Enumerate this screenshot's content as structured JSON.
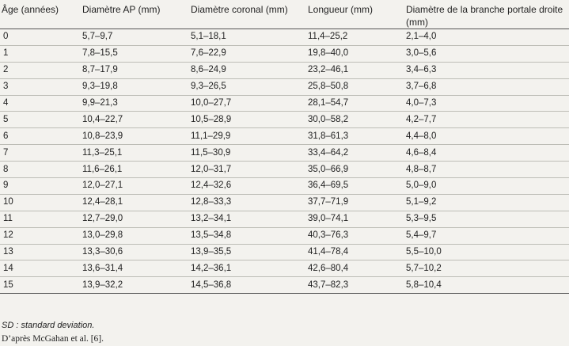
{
  "table": {
    "headers": [
      "Âge (années)",
      "Diamètre AP (mm)",
      "Diamètre coronal (mm)",
      "Longueur (mm)",
      "Diamètre de la branche portale droite (mm)"
    ],
    "rows": [
      [
        "0",
        "5,7–9,7",
        "5,1–18,1",
        "11,4–25,2",
        "2,1–4,0"
      ],
      [
        "1",
        "7,8–15,5",
        "7,6–22,9",
        "19,8–40,0",
        "3,0–5,6"
      ],
      [
        "2",
        "8,7–17,9",
        "8,6–24,9",
        "23,2–46,1",
        "3,4–6,3"
      ],
      [
        "3",
        "9,3–19,8",
        "9,3–26,5",
        "25,8–50,8",
        "3,7–6,8"
      ],
      [
        "4",
        "9,9–21,3",
        "10,0–27,7",
        "28,1–54,7",
        "4,0–7,3"
      ],
      [
        "5",
        "10,4–22,7",
        "10,5–28,9",
        "30,0–58,2",
        "4,2–7,7"
      ],
      [
        "6",
        "10,8–23,9",
        "11,1–29,9",
        "31,8–61,3",
        "4,4–8,0"
      ],
      [
        "7",
        "11,3–25,1",
        "11,5–30,9",
        "33,4–64,2",
        "4,6–8,4"
      ],
      [
        "8",
        "11,6–26,1",
        "12,0–31,7",
        "35,0–66,9",
        "4,8–8,7"
      ],
      [
        "9",
        "12,0–27,1",
        "12,4–32,6",
        "36,4–69,5",
        "5,0–9,0"
      ],
      [
        "10",
        "12,4–28,1",
        "12,8–33,3",
        "37,7–71,9",
        "5,1–9,2"
      ],
      [
        "11",
        "12,7–29,0",
        "13,2–34,1",
        "39,0–74,1",
        "5,3–9,5"
      ],
      [
        "12",
        "13,0–29,8",
        "13,5–34,8",
        "40,3–76,3",
        "5,4–9,7"
      ],
      [
        "13",
        "13,3–30,6",
        "13,9–35,5",
        "41,4–78,4",
        "5,5–10,0"
      ],
      [
        "14",
        "13,6–31,4",
        "14,2–36,1",
        "42,6–80,4",
        "5,7–10,2"
      ],
      [
        "15",
        "13,9–32,2",
        "14,5–36,8",
        "43,7–82,3",
        "5,8–10,4"
      ]
    ]
  },
  "footnotes": {
    "sd": "SD : standard deviation.",
    "source": "D’après McGahan et al. [6]."
  }
}
